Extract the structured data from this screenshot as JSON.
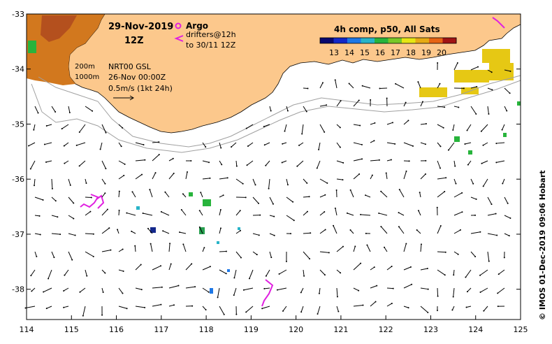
{
  "title": {
    "date": "29-Nov-2019",
    "hour": "12Z"
  },
  "legend_argo": {
    "argo_label": "Argo",
    "drifters_label": "drifters@12h",
    "drifters_sub": "to 30/11 12Z"
  },
  "contours": {
    "c200": "200m",
    "c1000": "1000m"
  },
  "vectors": {
    "product": "NRT00 GSL",
    "date": "26-Nov 00:00Z",
    "scale": "0.5m/s (1kt 24h)"
  },
  "sst_legend": {
    "title": "4h comp, p50, All Sats",
    "ticks": [
      "13",
      "14",
      "15",
      "16",
      "17",
      "18",
      "19",
      "20"
    ],
    "colors": [
      "#08086e",
      "#1428c8",
      "#1e78e6",
      "#28b4c8",
      "#28b43c",
      "#78c828",
      "#e6e614",
      "#e6aa14",
      "#e66414",
      "#a01414"
    ]
  },
  "axes": {
    "x_ticks": [
      "114",
      "115",
      "116",
      "117",
      "118",
      "119",
      "120",
      "121",
      "122",
      "123",
      "124",
      "125"
    ],
    "y_ticks": [
      "-33",
      "-34",
      "-35",
      "-36",
      "-37",
      "-38"
    ]
  },
  "credit": "© IMOS 01-Dec-2019 09:06 Hobart",
  "colors": {
    "land": "#fcc88c",
    "argo": "#e020e0",
    "drifter": "#e020e0"
  }
}
